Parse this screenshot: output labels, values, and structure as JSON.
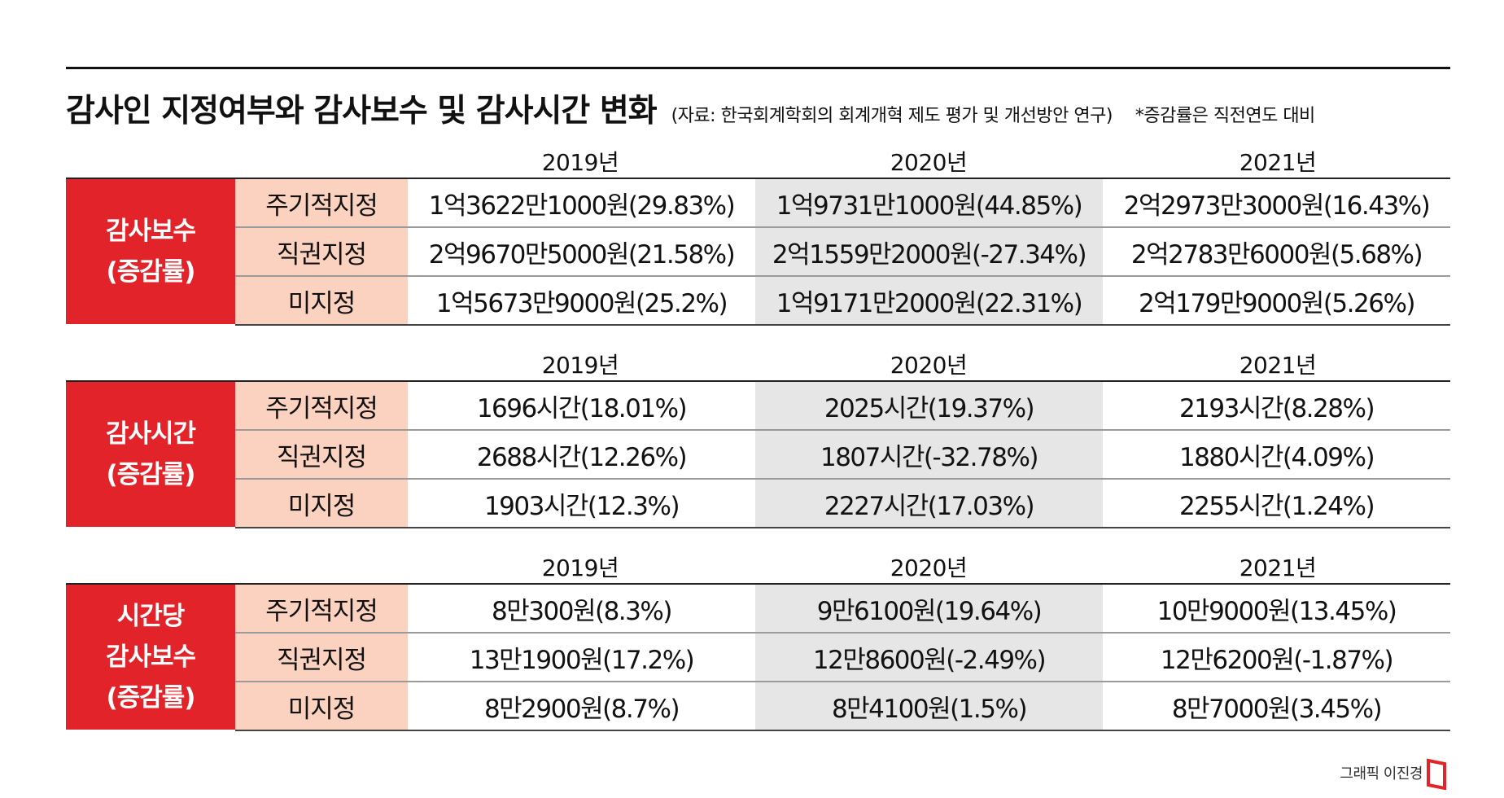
{
  "title": "감사인 지정여부와 감사보수 및 감사시간 변화",
  "source": "(자료: 한국회계학회의 회계개혁 제도 평가 및 개선방안 연구)",
  "note": "*증감률은 직전연도 대비",
  "credit": "그래픽 이진경",
  "colors": {
    "header_red": "#e3232a",
    "category_pink": "#fbd2c0",
    "highlight_gray": "#e6e6e6"
  },
  "chart_data": {
    "type": "table",
    "years": [
      "2019년",
      "2020년",
      "2021년"
    ],
    "categories": [
      "주기적지정",
      "직권지정",
      "미지정"
    ],
    "tables": [
      {
        "header": [
          "감사보수",
          "(증감률)"
        ],
        "rows": [
          [
            "1억3622만1000원(29.83%)",
            "1억9731만1000원(44.85%)",
            "2억2973만3000원(16.43%)"
          ],
          [
            "2억9670만5000원(21.58%)",
            "2억1559만2000원(-27.34%)",
            "2억2783만6000원(5.68%)"
          ],
          [
            "1억5673만9000원(25.2%)",
            "1억9171만2000원(22.31%)",
            "2억179만9000원(5.26%)"
          ]
        ]
      },
      {
        "header": [
          "감사시간",
          "(증감률)"
        ],
        "rows": [
          [
            "1696시간(18.01%)",
            "2025시간(19.37%)",
            "2193시간(8.28%)"
          ],
          [
            "2688시간(12.26%)",
            "1807시간(-32.78%)",
            "1880시간(4.09%)"
          ],
          [
            "1903시간(12.3%)",
            "2227시간(17.03%)",
            "2255시간(1.24%)"
          ]
        ]
      },
      {
        "header": [
          "시간당",
          "감사보수",
          "(증감률)"
        ],
        "rows": [
          [
            "8만300원(8.3%)",
            "9만6100원(19.64%)",
            "10만9000원(13.45%)"
          ],
          [
            "13만1900원(17.2%)",
            "12만8600원(-2.49%)",
            "12만6200원(-1.87%)"
          ],
          [
            "8만2900원(8.7%)",
            "8만4100원(1.5%)",
            "8만7000원(3.45%)"
          ]
        ]
      }
    ]
  }
}
